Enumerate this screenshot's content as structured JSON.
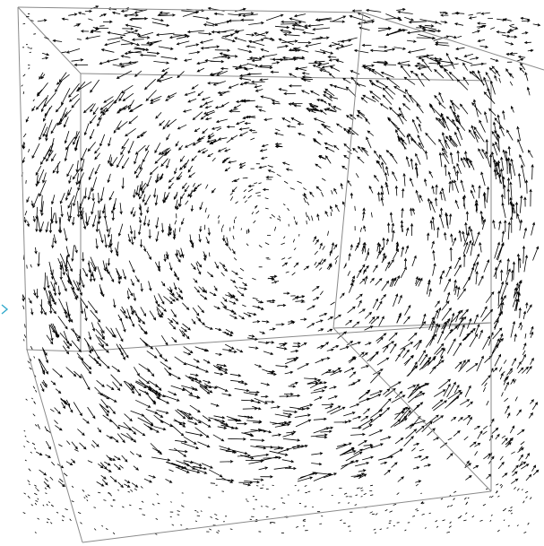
{
  "visualization": {
    "type": "3d-vector-field",
    "pattern": "cavity-vortex",
    "background_color": "#ffffff",
    "arrow_color": "#000000",
    "box_edge_color": "#8a8a8a",
    "marker_color": "#33aacc",
    "axis_labels": [],
    "title": ""
  }
}
